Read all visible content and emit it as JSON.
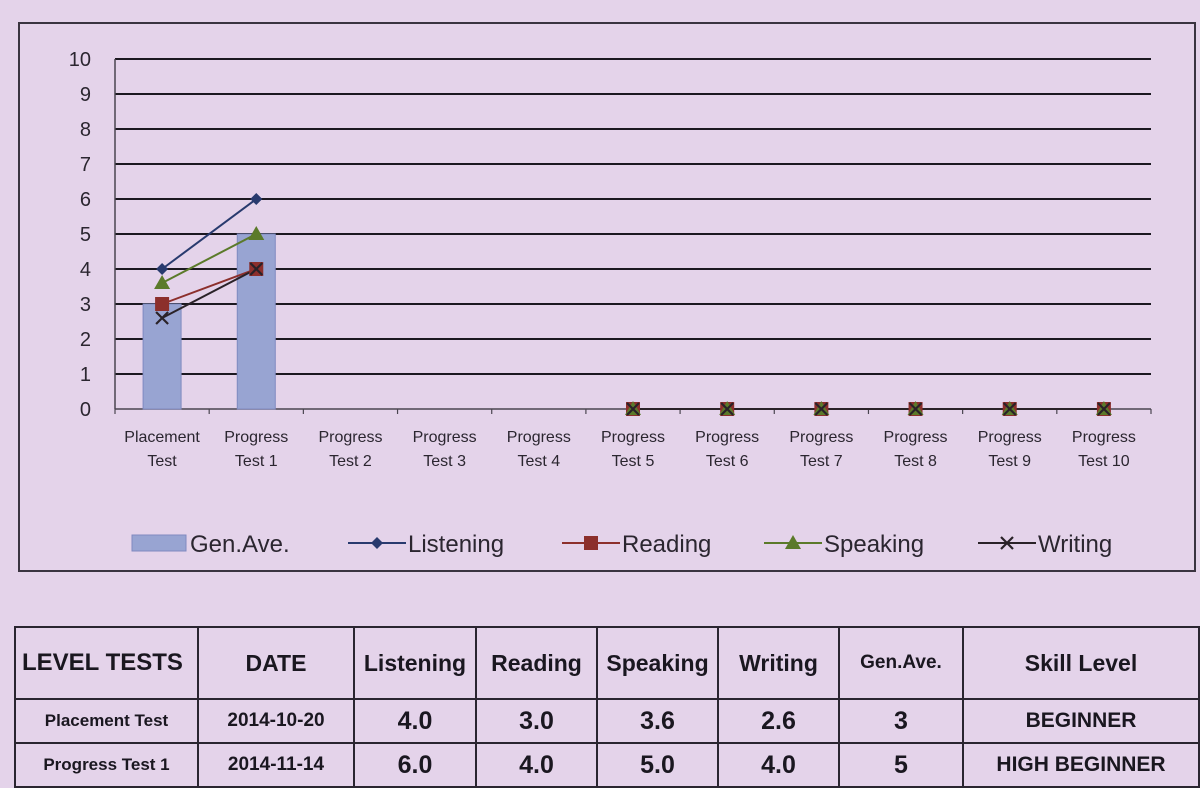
{
  "chart_data": {
    "type": "bar+line",
    "categories": [
      [
        "Placement",
        "Test"
      ],
      [
        "Progress",
        "Test 1"
      ],
      [
        "Progress",
        "Test 2"
      ],
      [
        "Progress",
        "Test 3"
      ],
      [
        "Progress",
        "Test 4"
      ],
      [
        "Progress",
        "Test 5"
      ],
      [
        "Progress",
        "Test 6"
      ],
      [
        "Progress",
        "Test 7"
      ],
      [
        "Progress",
        "Test 8"
      ],
      [
        "Progress",
        "Test 9"
      ],
      [
        "Progress",
        "Test 10"
      ]
    ],
    "ylim": [
      0,
      10
    ],
    "yticks": [
      0,
      1,
      2,
      3,
      4,
      5,
      6,
      7,
      8,
      9,
      10
    ],
    "grid": true,
    "legend_position": "bottom",
    "bar_series": {
      "name": "Gen.Ave.",
      "color": "#98a4d2",
      "values": [
        3,
        5,
        null,
        null,
        null,
        null,
        null,
        null,
        null,
        null,
        null
      ]
    },
    "line_series": [
      {
        "name": "Listening",
        "color": "#283a6e",
        "marker": "diamond",
        "values": [
          4.0,
          6.0,
          null,
          null,
          null,
          0,
          0,
          0,
          0,
          0,
          0
        ]
      },
      {
        "name": "Reading",
        "color": "#8c2f2c",
        "marker": "square",
        "values": [
          3.0,
          4.0,
          null,
          null,
          null,
          0,
          0,
          0,
          0,
          0,
          0
        ]
      },
      {
        "name": "Speaking",
        "color": "#5b7a2a",
        "marker": "triangle",
        "values": [
          3.6,
          5.0,
          null,
          null,
          null,
          0,
          0,
          0,
          0,
          0,
          0
        ]
      },
      {
        "name": "Writing",
        "color": "#2a2228",
        "marker": "x",
        "values": [
          2.6,
          4.0,
          null,
          null,
          null,
          0,
          0,
          0,
          0,
          0,
          0
        ]
      }
    ]
  },
  "table": {
    "headers": [
      "LEVEL TESTS",
      "DATE",
      "Listening",
      "Reading",
      "Speaking",
      "Writing",
      "Gen.Ave.",
      "Skill Level"
    ],
    "rows": [
      [
        "Placement Test",
        "2014-10-20",
        "4.0",
        "3.0",
        "3.6",
        "2.6",
        "3",
        "BEGINNER"
      ],
      [
        "Progress Test 1",
        "2014-11-14",
        "6.0",
        "4.0",
        "5.0",
        "4.0",
        "5",
        "HIGH BEGINNER"
      ]
    ]
  }
}
